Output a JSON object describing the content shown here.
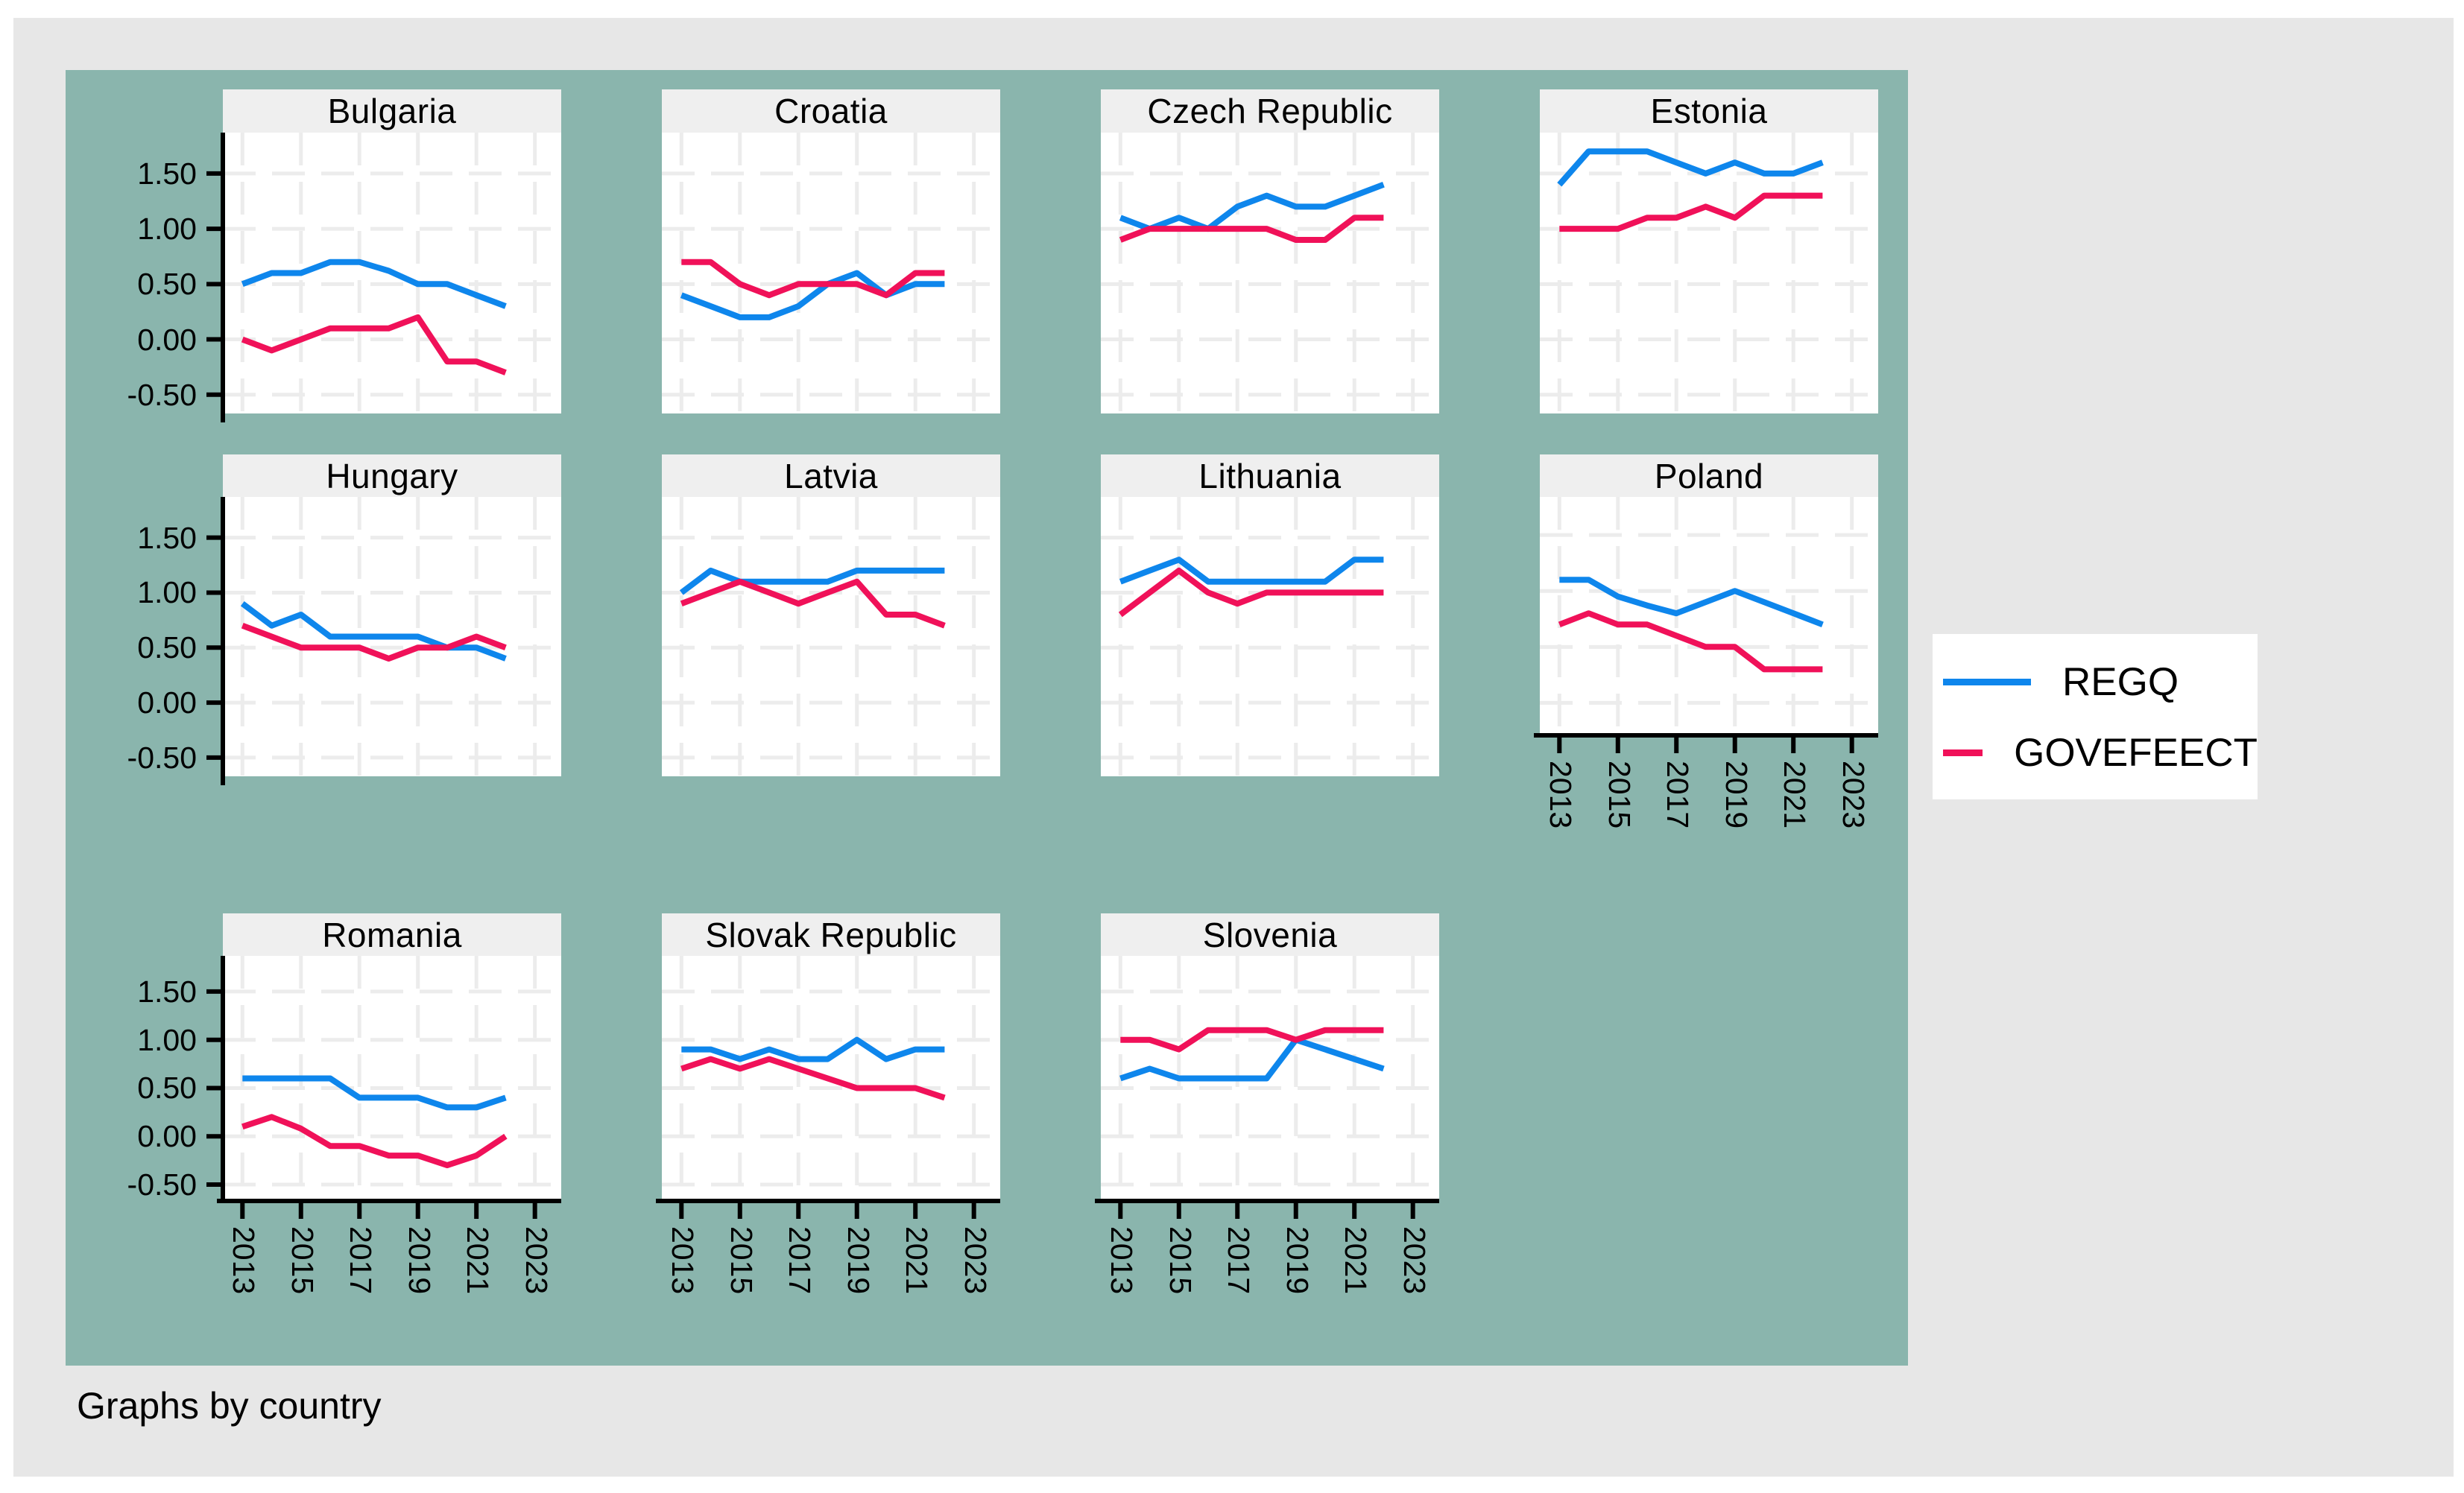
{
  "caption": "Graphs by country",
  "legend": {
    "items": [
      {
        "label": "REGQ",
        "color": "#0e86ec"
      },
      {
        "label": "GOVEFEECT",
        "color": "#f01159"
      }
    ]
  },
  "axis": {
    "y_tick_labels": [
      "1.50",
      "1.00",
      "0.50",
      "0.00",
      "-0.50"
    ],
    "y_tick_values": [
      1.5,
      1.0,
      0.5,
      0.0,
      -0.5
    ],
    "x_tick_labels": [
      "2013",
      "2015",
      "2017",
      "2019",
      "2021",
      "2023"
    ],
    "x_tick_values": [
      2013,
      2015,
      2017,
      2019,
      2021,
      2023
    ],
    "ylim": [
      -0.67,
      1.87
    ],
    "xlim": [
      2012.33,
      2023.9
    ],
    "grid": true
  },
  "chart_data": [
    {
      "type": "line",
      "title": "Bulgaria",
      "x": [
        2013,
        2014,
        2015,
        2016,
        2017,
        2018,
        2019,
        2020,
        2021,
        2022
      ],
      "series": [
        {
          "name": "REGQ",
          "values": [
            0.5,
            0.6,
            0.6,
            0.7,
            0.7,
            0.62,
            0.5,
            0.5,
            0.4,
            0.3
          ]
        },
        {
          "name": "GOVEFEECT",
          "values": [
            0.0,
            -0.1,
            0.0,
            0.1,
            0.1,
            0.1,
            0.2,
            -0.2,
            -0.2,
            -0.3
          ]
        }
      ]
    },
    {
      "type": "line",
      "title": "Croatia",
      "x": [
        2013,
        2014,
        2015,
        2016,
        2017,
        2018,
        2019,
        2020,
        2021,
        2022
      ],
      "series": [
        {
          "name": "REGQ",
          "values": [
            0.4,
            0.3,
            0.2,
            0.2,
            0.3,
            0.5,
            0.6,
            0.4,
            0.5,
            0.5
          ]
        },
        {
          "name": "GOVEFEECT",
          "values": [
            0.7,
            0.7,
            0.5,
            0.4,
            0.5,
            0.5,
            0.5,
            0.4,
            0.6,
            0.6
          ]
        }
      ]
    },
    {
      "type": "line",
      "title": "Czech Republic",
      "x": [
        2013,
        2014,
        2015,
        2016,
        2017,
        2018,
        2019,
        2020,
        2021,
        2022
      ],
      "series": [
        {
          "name": "REGQ",
          "values": [
            1.1,
            1.0,
            1.1,
            1.0,
            1.2,
            1.3,
            1.2,
            1.2,
            1.3,
            1.4
          ]
        },
        {
          "name": "GOVEFEECT",
          "values": [
            0.9,
            1.0,
            1.0,
            1.0,
            1.0,
            1.0,
            0.9,
            0.9,
            1.1,
            1.1
          ]
        }
      ]
    },
    {
      "type": "line",
      "title": "Estonia",
      "x": [
        2013,
        2014,
        2015,
        2016,
        2017,
        2018,
        2019,
        2020,
        2021,
        2022
      ],
      "series": [
        {
          "name": "REGQ",
          "values": [
            1.4,
            1.7,
            1.7,
            1.7,
            1.6,
            1.5,
            1.6,
            1.5,
            1.5,
            1.6
          ]
        },
        {
          "name": "GOVEFEECT",
          "values": [
            1.0,
            1.0,
            1.0,
            1.1,
            1.1,
            1.2,
            1.1,
            1.3,
            1.3,
            1.3
          ]
        }
      ]
    },
    {
      "type": "line",
      "title": "Hungary",
      "x": [
        2013,
        2014,
        2015,
        2016,
        2017,
        2018,
        2019,
        2020,
        2021,
        2022
      ],
      "series": [
        {
          "name": "REGQ",
          "values": [
            0.9,
            0.7,
            0.8,
            0.6,
            0.6,
            0.6,
            0.6,
            0.5,
            0.5,
            0.4
          ]
        },
        {
          "name": "GOVEFEECT",
          "values": [
            0.7,
            0.6,
            0.5,
            0.5,
            0.5,
            0.4,
            0.5,
            0.5,
            0.6,
            0.5
          ]
        }
      ]
    },
    {
      "type": "line",
      "title": "Latvia",
      "x": [
        2013,
        2014,
        2015,
        2016,
        2017,
        2018,
        2019,
        2020,
        2021,
        2022
      ],
      "series": [
        {
          "name": "REGQ",
          "values": [
            1.0,
            1.2,
            1.1,
            1.1,
            1.1,
            1.1,
            1.2,
            1.2,
            1.2,
            1.2
          ]
        },
        {
          "name": "GOVEFEECT",
          "values": [
            0.9,
            1.0,
            1.1,
            1.0,
            0.9,
            1.0,
            1.1,
            0.8,
            0.8,
            0.7
          ]
        }
      ]
    },
    {
      "type": "line",
      "title": "Lithuania",
      "x": [
        2013,
        2014,
        2015,
        2016,
        2017,
        2018,
        2019,
        2020,
        2021,
        2022
      ],
      "series": [
        {
          "name": "REGQ",
          "values": [
            1.1,
            1.2,
            1.3,
            1.1,
            1.1,
            1.1,
            1.1,
            1.1,
            1.3,
            1.3
          ]
        },
        {
          "name": "GOVEFEECT",
          "values": [
            0.8,
            1.0,
            1.2,
            1.0,
            0.9,
            1.0,
            1.0,
            1.0,
            1.0,
            1.0
          ]
        }
      ]
    },
    {
      "type": "line",
      "title": "Poland",
      "x": [
        2013,
        2014,
        2015,
        2016,
        2017,
        2018,
        2019,
        2020,
        2021,
        2022
      ],
      "series": [
        {
          "name": "REGQ",
          "values": [
            1.1,
            1.1,
            0.95,
            0.87,
            0.8,
            0.9,
            1.0,
            0.9,
            0.8,
            0.7
          ]
        },
        {
          "name": "GOVEFEECT",
          "values": [
            0.7,
            0.8,
            0.7,
            0.7,
            0.6,
            0.5,
            0.5,
            0.3,
            0.3,
            0.3
          ]
        }
      ]
    },
    {
      "type": "line",
      "title": "Romania",
      "x": [
        2013,
        2014,
        2015,
        2016,
        2017,
        2018,
        2019,
        2020,
        2021,
        2022
      ],
      "series": [
        {
          "name": "REGQ",
          "values": [
            0.6,
            0.6,
            0.6,
            0.6,
            0.4,
            0.4,
            0.4,
            0.3,
            0.3,
            0.4
          ]
        },
        {
          "name": "GOVEFEECT",
          "values": [
            0.1,
            0.2,
            0.08,
            -0.1,
            -0.1,
            -0.2,
            -0.2,
            -0.3,
            -0.2,
            0.0
          ]
        }
      ]
    },
    {
      "type": "line",
      "title": "Slovak Republic",
      "x": [
        2013,
        2014,
        2015,
        2016,
        2017,
        2018,
        2019,
        2020,
        2021,
        2022
      ],
      "series": [
        {
          "name": "REGQ",
          "values": [
            0.9,
            0.9,
            0.8,
            0.9,
            0.8,
            0.8,
            1.0,
            0.8,
            0.9,
            0.9
          ]
        },
        {
          "name": "GOVEFEECT",
          "values": [
            0.7,
            0.8,
            0.7,
            0.8,
            0.7,
            0.6,
            0.5,
            0.5,
            0.5,
            0.4
          ]
        }
      ]
    },
    {
      "type": "line",
      "title": "Slovenia",
      "x": [
        2013,
        2014,
        2015,
        2016,
        2017,
        2018,
        2019,
        2020,
        2021,
        2022
      ],
      "series": [
        {
          "name": "REGQ",
          "values": [
            0.6,
            0.7,
            0.6,
            0.6,
            0.6,
            0.6,
            1.0,
            0.9,
            0.8,
            0.7
          ]
        },
        {
          "name": "GOVEFEECT",
          "values": [
            1.0,
            1.0,
            0.9,
            1.1,
            1.1,
            1.1,
            1.0,
            1.1,
            1.1,
            1.1
          ]
        }
      ]
    }
  ]
}
